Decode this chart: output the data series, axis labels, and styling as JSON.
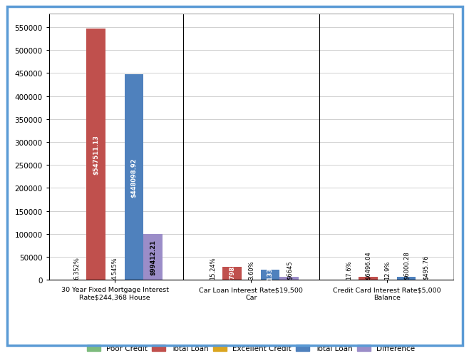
{
  "groups": [
    "30 Year Fixed Mortgage Interest\nRate$244,368 House",
    "Car Loan Interest Rate$19,500\nCar",
    "Credit Card Interest Rate$5,000\nBalance"
  ],
  "series": [
    {
      "name": "Poor Credit",
      "color": "#7dbb7d",
      "values": [
        6.352,
        15.24,
        17.6
      ],
      "labels": [
        "6.352%",
        "15.24%",
        "17.6%"
      ],
      "text_color": "black"
    },
    {
      "name": "Total Loan (Poor)",
      "color": "#c0504d",
      "values": [
        547511.13,
        27982,
        6496.04
      ],
      "labels": [
        "$547511.13",
        "$27982",
        "$6496.04"
      ],
      "text_color": "white"
    },
    {
      "name": "Excellent Credit",
      "color": "#daa520",
      "values": [
        4.545,
        3.6,
        12.9
      ],
      "labels": [
        "4.545%",
        "3.60%",
        "12.9%"
      ],
      "text_color": "black"
    },
    {
      "name": "Total Loan (Excellent)",
      "color": "#4f81bd",
      "values": [
        448098.92,
        21337,
        6000.28
      ],
      "labels": [
        "$448098.92",
        "$21337",
        "$6000.28"
      ],
      "text_color": "white"
    },
    {
      "name": "Difference",
      "color": "#9b8dc8",
      "values": [
        99412.21,
        6645,
        495.76
      ],
      "labels": [
        "$99412.21",
        "$6645",
        "$495.76"
      ],
      "text_color": "black"
    }
  ],
  "ylim": [
    0,
    580000
  ],
  "yticks": [
    0,
    50000,
    100000,
    150000,
    200000,
    250000,
    300000,
    350000,
    400000,
    450000,
    500000,
    550000
  ],
  "background_color": "#ffffff",
  "border_color": "#5b9bd5",
  "grid_color": "#d0d0d0",
  "legend_labels": [
    "Poor Credit",
    "Total Loan",
    "Excellent Credit",
    "Total Loan",
    "Difference"
  ],
  "legend_colors": [
    "#7dbb7d",
    "#c0504d",
    "#daa520",
    "#4f81bd",
    "#9b8dc8"
  ],
  "bar_width": 0.14,
  "label_threshold": 10000,
  "label_fontsize": 6.0
}
